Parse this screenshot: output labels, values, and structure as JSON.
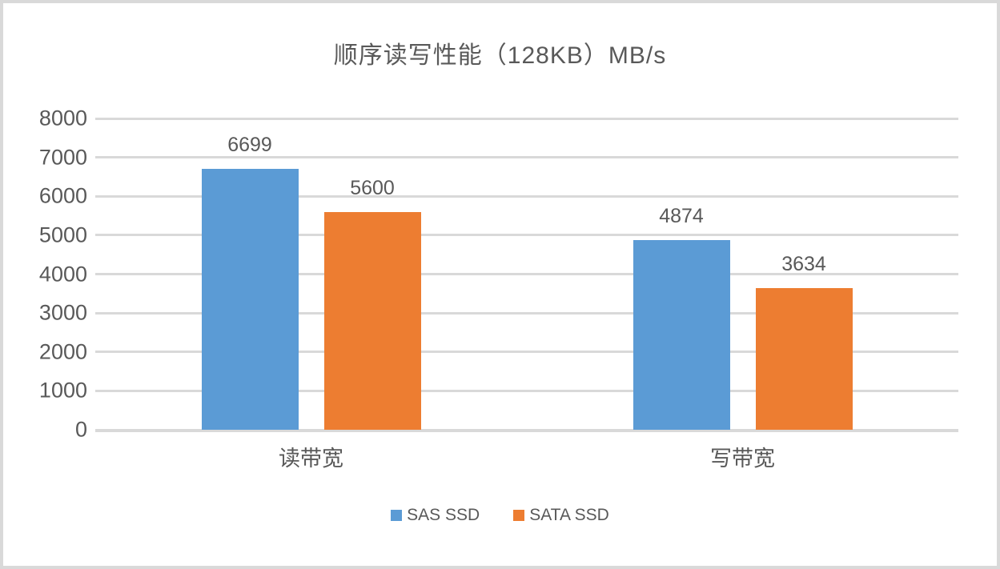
{
  "chart_data": {
    "type": "bar",
    "title": "顺序读写性能（128KB）MB/s",
    "categories": [
      "读带宽",
      "写带宽"
    ],
    "series": [
      {
        "name": "SAS SSD",
        "color": "#5B9BD5",
        "values": [
          6699,
          4874
        ]
      },
      {
        "name": "SATA SSD",
        "color": "#ED7D31",
        "values": [
          5600,
          3634
        ]
      }
    ],
    "xlabel": "",
    "ylabel": "",
    "ylim": [
      0,
      8000
    ],
    "ytick_step": 1000,
    "ytick_labels": [
      "0",
      "1000",
      "2000",
      "3000",
      "4000",
      "5000",
      "6000",
      "7000",
      "8000"
    ],
    "grid": true,
    "legend_position": "bottom",
    "data_labels_shown": true
  },
  "colors": {
    "background": "#FFFFFF",
    "border": "#D9D9D9",
    "gridline": "#D9D9D9",
    "text": "#595959",
    "series_blue": "#5B9BD5",
    "series_orange": "#ED7D31"
  }
}
